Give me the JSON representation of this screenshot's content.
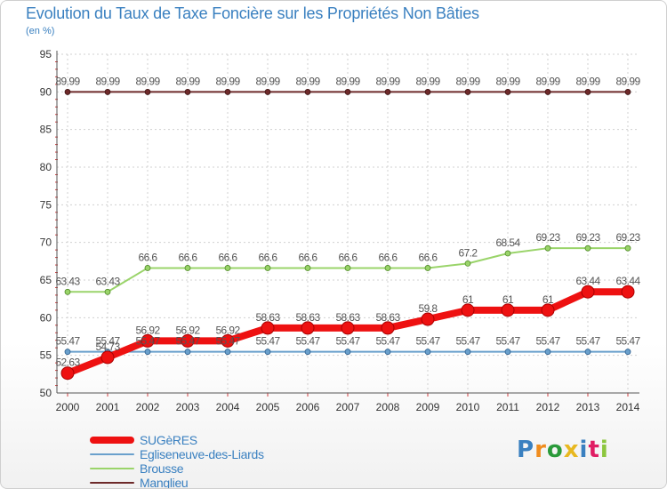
{
  "chart_data": {
    "type": "line",
    "title": "Evolution du Taux de Taxe Foncière sur les Propriétés Non Bâties",
    "unit_label": "(en %)",
    "xlabel": "",
    "ylabel": "",
    "categories": [
      "2000",
      "2001",
      "2002",
      "2003",
      "2004",
      "2005",
      "2006",
      "2007",
      "2008",
      "2009",
      "2010",
      "2011",
      "2012",
      "2013",
      "2014"
    ],
    "ylim": [
      50,
      95
    ],
    "yticks": [
      50,
      55,
      60,
      65,
      70,
      75,
      80,
      85,
      90,
      95
    ],
    "grid": true,
    "legend_position": "bottom-left",
    "series": [
      {
        "name": "Manglieu",
        "color": "#6e2a2a",
        "values": [
          89.99,
          89.99,
          89.99,
          89.99,
          89.99,
          89.99,
          89.99,
          89.99,
          89.99,
          89.99,
          89.99,
          89.99,
          89.99,
          89.99,
          89.99
        ],
        "labels": [
          "89.99",
          "89.99",
          "89.99",
          "89.99",
          "89.99",
          "89.99",
          "89.99",
          "89.99",
          "89.99",
          "89.99",
          "89.99",
          "89.99",
          "89.99",
          "89.99",
          "89.99"
        ]
      },
      {
        "name": "Brousse",
        "color": "#9ad46a",
        "values": [
          63.43,
          63.43,
          66.6,
          66.6,
          66.6,
          66.6,
          66.6,
          66.6,
          66.6,
          66.6,
          67.2,
          68.54,
          69.23,
          69.23,
          69.23
        ],
        "labels": [
          "63.43",
          "63.43",
          "66.6",
          "66.6",
          "66.6",
          "66.6",
          "66.6",
          "66.6",
          "66.6",
          "66.6",
          "67.2",
          "68.54",
          "69.23",
          "69.23",
          "69.23"
        ]
      },
      {
        "name": "Egliseneuve-des-Liards",
        "color": "#6aa0cc",
        "values": [
          55.47,
          55.47,
          55.47,
          55.47,
          55.47,
          55.47,
          55.47,
          55.47,
          55.47,
          55.47,
          55.47,
          55.47,
          55.47,
          55.47,
          55.47
        ],
        "labels": [
          "55.47",
          "55.47",
          "55.47",
          "55.47",
          "55.47",
          "55.47",
          "55.47",
          "55.47",
          "55.47",
          "55.47",
          "55.47",
          "55.47",
          "55.47",
          "55.47",
          "55.47"
        ]
      },
      {
        "name": "SUGèRES",
        "color": "#ee1111",
        "values": [
          52.63,
          54.73,
          56.92,
          56.92,
          56.92,
          58.63,
          58.63,
          58.63,
          58.63,
          59.8,
          61,
          61,
          61,
          63.44,
          63.44
        ],
        "labels": [
          "52.63",
          "54.73",
          "56.92",
          "56.92",
          "56.92",
          "58.63",
          "58.63",
          "58.63",
          "58.63",
          "59.8",
          "61",
          "61",
          "61",
          "63.44",
          "63.44"
        ]
      }
    ]
  },
  "legend": {
    "items": [
      {
        "label": "SUGèRES",
        "color": "#ee1111"
      },
      {
        "label": "Egliseneuve-des-Liards",
        "color": "#6aa0cc"
      },
      {
        "label": "Brousse",
        "color": "#9ad46a"
      },
      {
        "label": "Manglieu",
        "color": "#6e2a2a"
      }
    ]
  },
  "logo": {
    "text": "Proxiti",
    "colors": [
      "#3a80c0",
      "#f08c1e",
      "#2a9a3a",
      "#e8b820",
      "#3a80c0",
      "#e01e64",
      "#8cc63e"
    ]
  }
}
